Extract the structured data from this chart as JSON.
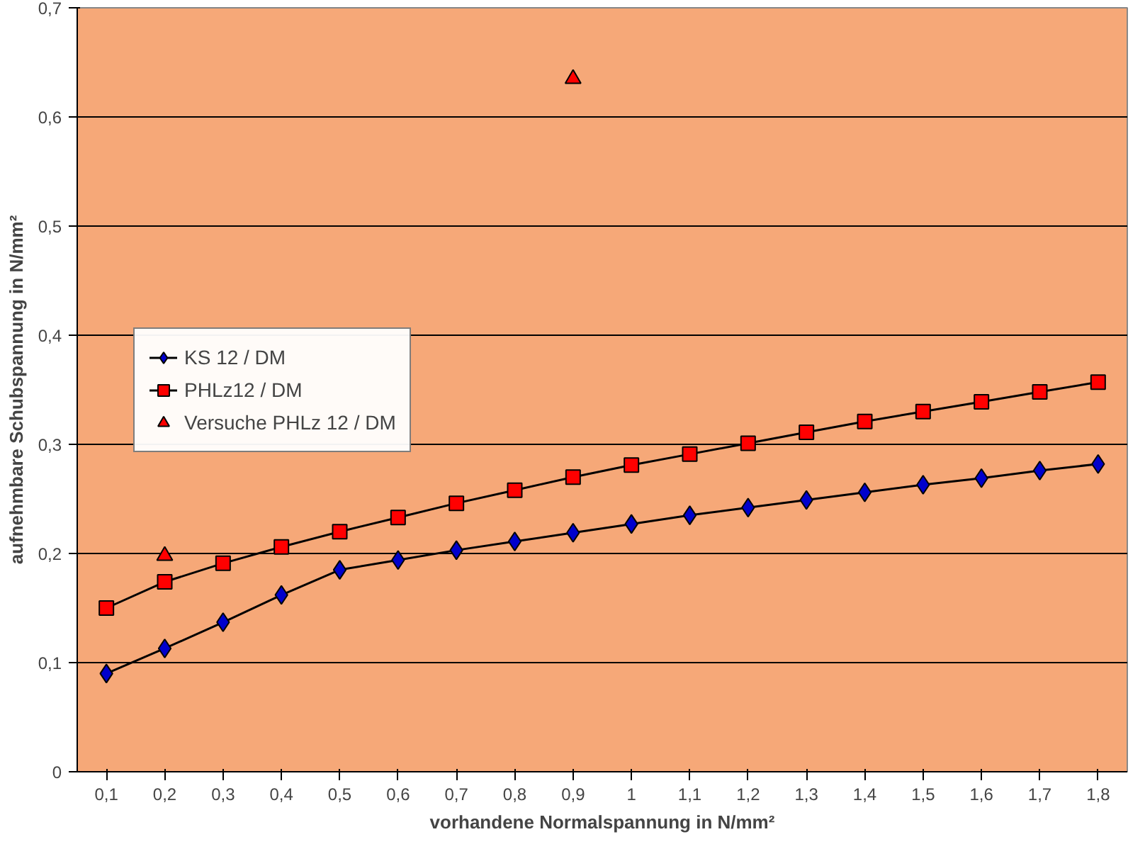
{
  "chart_data": {
    "type": "line",
    "xlabel": "vorhandene Normalspannung in N/mm²",
    "ylabel": "aufnehmbare Schubspannung in N/mm²",
    "categories": [
      "0,1",
      "0,2",
      "0,3",
      "0,4",
      "0,5",
      "0,6",
      "0,7",
      "0,8",
      "0,9",
      "1",
      "1,1",
      "1,2",
      "1,3",
      "1,4",
      "1,5",
      "1,6",
      "1,7",
      "1,8"
    ],
    "ylim": [
      0,
      0.7
    ],
    "yticks": [
      0,
      {
        "value": 0.1,
        "label": "0,1"
      },
      {
        "value": 0.2,
        "label": "0,2"
      },
      {
        "value": 0.3,
        "label": "0,3"
      },
      {
        "value": 0.4,
        "label": "0,4"
      },
      {
        "value": 0.5,
        "label": "0,5"
      },
      {
        "value": 0.6,
        "label": "0,6"
      },
      {
        "value": 0.7,
        "label": "0,7"
      }
    ],
    "grid": "y",
    "legend": "left",
    "series": [
      {
        "name": "KS 12 / DM",
        "color": "#0000cc",
        "marker": "diamond",
        "values": [
          0.09,
          0.113,
          0.137,
          0.162,
          0.185,
          0.194,
          0.203,
          0.211,
          0.219,
          0.227,
          0.235,
          0.242,
          0.249,
          0.256,
          0.263,
          0.269,
          0.276,
          0.282
        ]
      },
      {
        "name": "PHLz12 / DM",
        "color": "#ff0000",
        "marker": "square",
        "values": [
          0.15,
          0.174,
          0.191,
          0.206,
          0.22,
          0.233,
          0.246,
          0.258,
          0.27,
          0.281,
          0.291,
          0.301,
          0.311,
          0.321,
          0.33,
          0.339,
          0.348,
          0.357
        ]
      },
      {
        "name": "Versuche PHLz 12 / DM",
        "type": "scatter",
        "color": "#ff0000",
        "marker": "triangle",
        "values": [
          null,
          0.198,
          null,
          null,
          null,
          null,
          null,
          null,
          0.635,
          null,
          null,
          null,
          null,
          null,
          null,
          null,
          null,
          null
        ]
      }
    ]
  }
}
